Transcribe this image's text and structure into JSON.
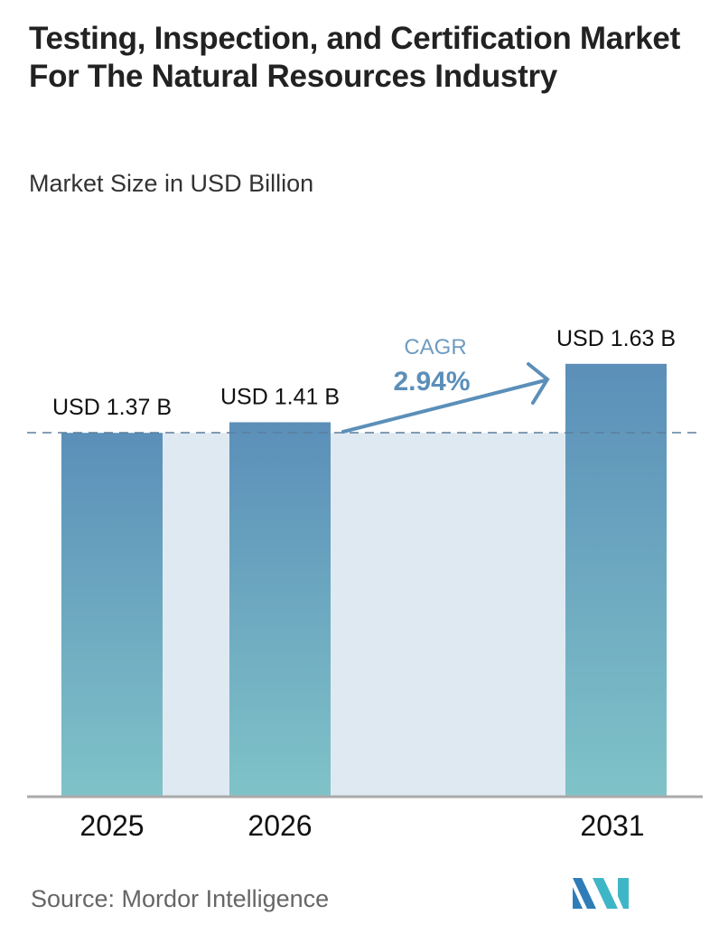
{
  "title": "Testing, Inspection, and Certification Market For The Natural Resources Industry",
  "subtitle": "Market Size in USD Billion",
  "source": "Source:  Mordor Intelligence",
  "logo_text": "MI",
  "chart_data": {
    "type": "bar",
    "categories": [
      "2025",
      "2026",
      "2031"
    ],
    "values": [
      1.37,
      1.41,
      1.63
    ],
    "data_labels": [
      "USD 1.37 B",
      "USD 1.41 B",
      "USD 1.63 B"
    ],
    "ylim": [
      0,
      1.63
    ],
    "grid": false,
    "annotation": {
      "label": "CAGR",
      "value": "2.94%"
    },
    "colors": {
      "bar_top": "#5b8fb9",
      "bar_bottom": "#7fc3c8",
      "band": "#dfe9f1",
      "accent": "#5b8fb9"
    }
  }
}
